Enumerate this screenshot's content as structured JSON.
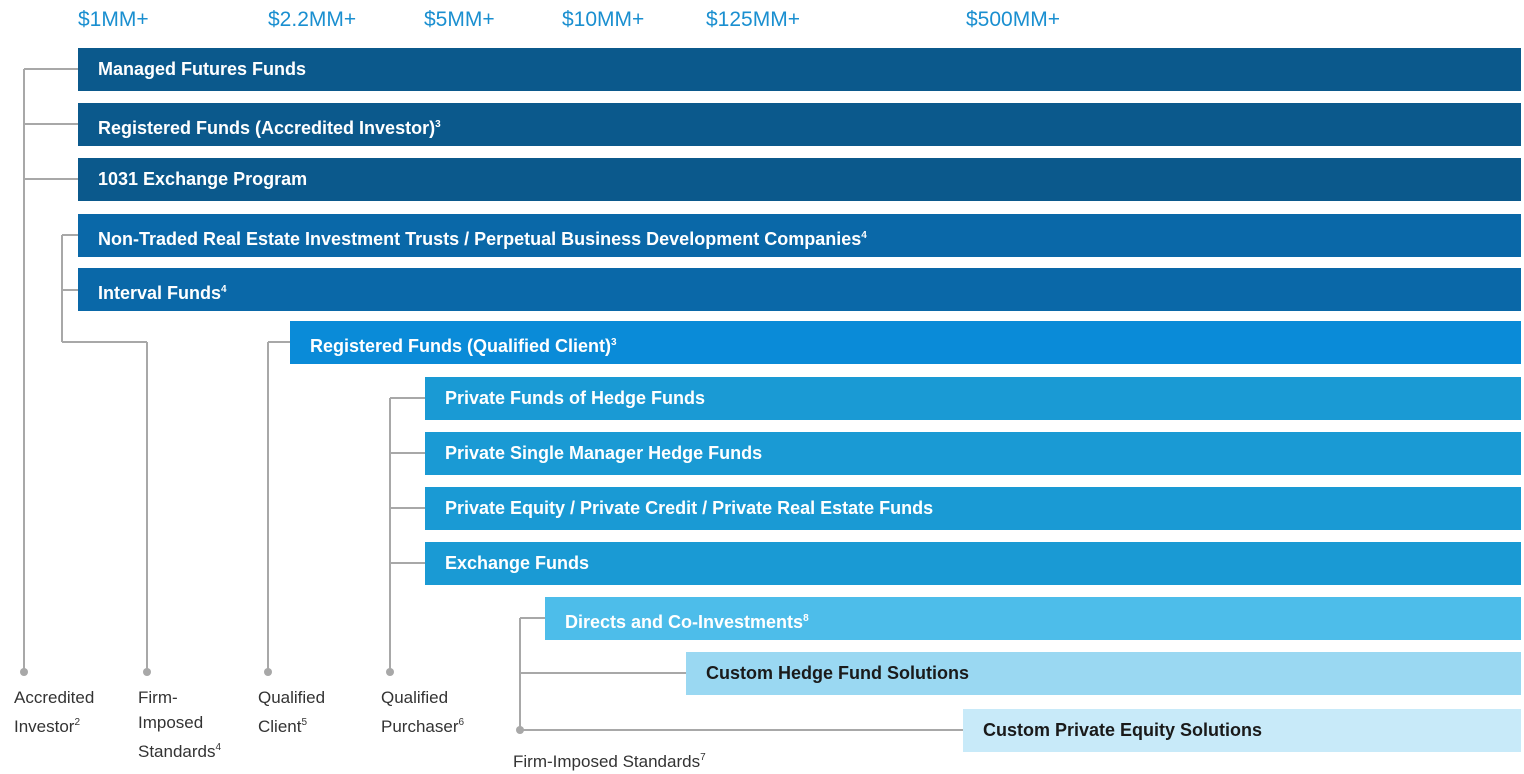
{
  "thresholds": [
    "$1MM+",
    "$2.2MM+",
    "$5MM+",
    "$10MM+",
    "$125MM+",
    "$500MM+"
  ],
  "bars": [
    {
      "label": "Managed Futures Funds",
      "color": "#0b598c"
    },
    {
      "label": "Registered Funds (Accredited Investor)",
      "note": "3",
      "color": "#0b598c"
    },
    {
      "label": "1031 Exchange Program",
      "color": "#0b598c"
    },
    {
      "label": "Non-Traded Real Estate Investment Trusts / Perpetual Business Development Companies",
      "note": "4",
      "color": "#0a68a8"
    },
    {
      "label": "Interval Funds",
      "note": "4",
      "color": "#0a68a8"
    },
    {
      "label": "Registered Funds (Qualified Client)",
      "note": "3",
      "color": "#0a8bd8"
    },
    {
      "label": "Private Funds of Hedge Funds",
      "color": "#1a9ad4"
    },
    {
      "label": "Private Single Manager Hedge Funds",
      "color": "#1a9ad4"
    },
    {
      "label": "Private Equity / Private Credit / Private Real Estate Funds",
      "color": "#1a9ad4"
    },
    {
      "label": "Exchange Funds",
      "color": "#1a9ad4"
    },
    {
      "label": "Directs and Co-Investments",
      "note": "8",
      "color": "#4dbdea"
    },
    {
      "label": "Custom Hedge Fund Solutions",
      "color": "#9ad8f2"
    },
    {
      "label": "Custom Private Equity Solutions",
      "color": "#c8eaf9"
    }
  ],
  "standards": [
    {
      "lines": [
        "Accredited",
        "Investor"
      ],
      "note": "2"
    },
    {
      "lines": [
        "Firm-",
        "Imposed",
        "Standards"
      ],
      "note": "4"
    },
    {
      "lines": [
        "Qualified",
        "Client"
      ],
      "note": "5"
    },
    {
      "lines": [
        "Qualified",
        "Purchaser"
      ],
      "note": "6"
    },
    {
      "lines": [
        "Firm-Imposed Standards"
      ],
      "note": "7"
    }
  ]
}
